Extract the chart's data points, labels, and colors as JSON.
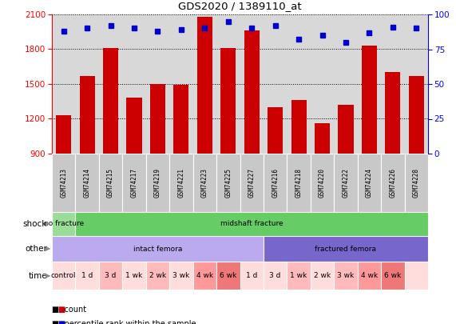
{
  "title": "GDS2020 / 1389110_at",
  "samples": [
    "GSM74213",
    "GSM74214",
    "GSM74215",
    "GSM74217",
    "GSM74219",
    "GSM74221",
    "GSM74223",
    "GSM74225",
    "GSM74227",
    "GSM74216",
    "GSM74218",
    "GSM74220",
    "GSM74222",
    "GSM74224",
    "GSM74226",
    "GSM74228"
  ],
  "counts": [
    1230,
    1570,
    1810,
    1380,
    1500,
    1490,
    2080,
    1810,
    1960,
    1300,
    1360,
    1160,
    1320,
    1830,
    1600,
    1570
  ],
  "percentiles": [
    88,
    90,
    92,
    90,
    88,
    89,
    90,
    95,
    90,
    92,
    82,
    85,
    80,
    87,
    91,
    90
  ],
  "ymin": 900,
  "ymax": 2100,
  "yticks_left": [
    900,
    1200,
    1500,
    1800,
    2100
  ],
  "yticks_right": [
    0,
    25,
    50,
    75,
    100
  ],
  "bar_color": "#cc0000",
  "dot_color": "#0000cc",
  "chart_bg_color": "#d8d8d8",
  "sample_box_color": "#c8c8c8",
  "shock_labels": [
    {
      "text": "no fracture",
      "start": 0,
      "end": 1,
      "color": "#99dd99"
    },
    {
      "text": "midshaft fracture",
      "start": 1,
      "end": 16,
      "color": "#66cc66"
    }
  ],
  "other_labels": [
    {
      "text": "intact femora",
      "start": 0,
      "end": 9,
      "color": "#bbaaee"
    },
    {
      "text": "fractured femora",
      "start": 9,
      "end": 16,
      "color": "#7766cc"
    }
  ],
  "time_labels": [
    {
      "text": "control",
      "start": 0,
      "end": 1,
      "color": "#ffdddd"
    },
    {
      "text": "1 d",
      "start": 1,
      "end": 2,
      "color": "#ffdddd"
    },
    {
      "text": "3 d",
      "start": 2,
      "end": 3,
      "color": "#ffbbbb"
    },
    {
      "text": "1 wk",
      "start": 3,
      "end": 4,
      "color": "#ffdddd"
    },
    {
      "text": "2 wk",
      "start": 4,
      "end": 5,
      "color": "#ffbbbb"
    },
    {
      "text": "3 wk",
      "start": 5,
      "end": 6,
      "color": "#ffdddd"
    },
    {
      "text": "4 wk",
      "start": 6,
      "end": 7,
      "color": "#ff9999"
    },
    {
      "text": "6 wk",
      "start": 7,
      "end": 8,
      "color": "#ee7777"
    },
    {
      "text": "1 d",
      "start": 8,
      "end": 9,
      "color": "#ffdddd"
    },
    {
      "text": "3 d",
      "start": 9,
      "end": 10,
      "color": "#ffdddd"
    },
    {
      "text": "1 wk",
      "start": 10,
      "end": 11,
      "color": "#ffbbbb"
    },
    {
      "text": "2 wk",
      "start": 11,
      "end": 12,
      "color": "#ffdddd"
    },
    {
      "text": "3 wk",
      "start": 12,
      "end": 13,
      "color": "#ffbbbb"
    },
    {
      "text": "4 wk",
      "start": 13,
      "end": 14,
      "color": "#ff9999"
    },
    {
      "text": "6 wk",
      "start": 14,
      "end": 15,
      "color": "#ee7777"
    },
    {
      "text": "",
      "start": 15,
      "end": 16,
      "color": "#ffdddd"
    }
  ],
  "legend_items": [
    {
      "color": "#cc0000",
      "label": "count"
    },
    {
      "color": "#0000cc",
      "label": "percentile rank within the sample"
    }
  ]
}
